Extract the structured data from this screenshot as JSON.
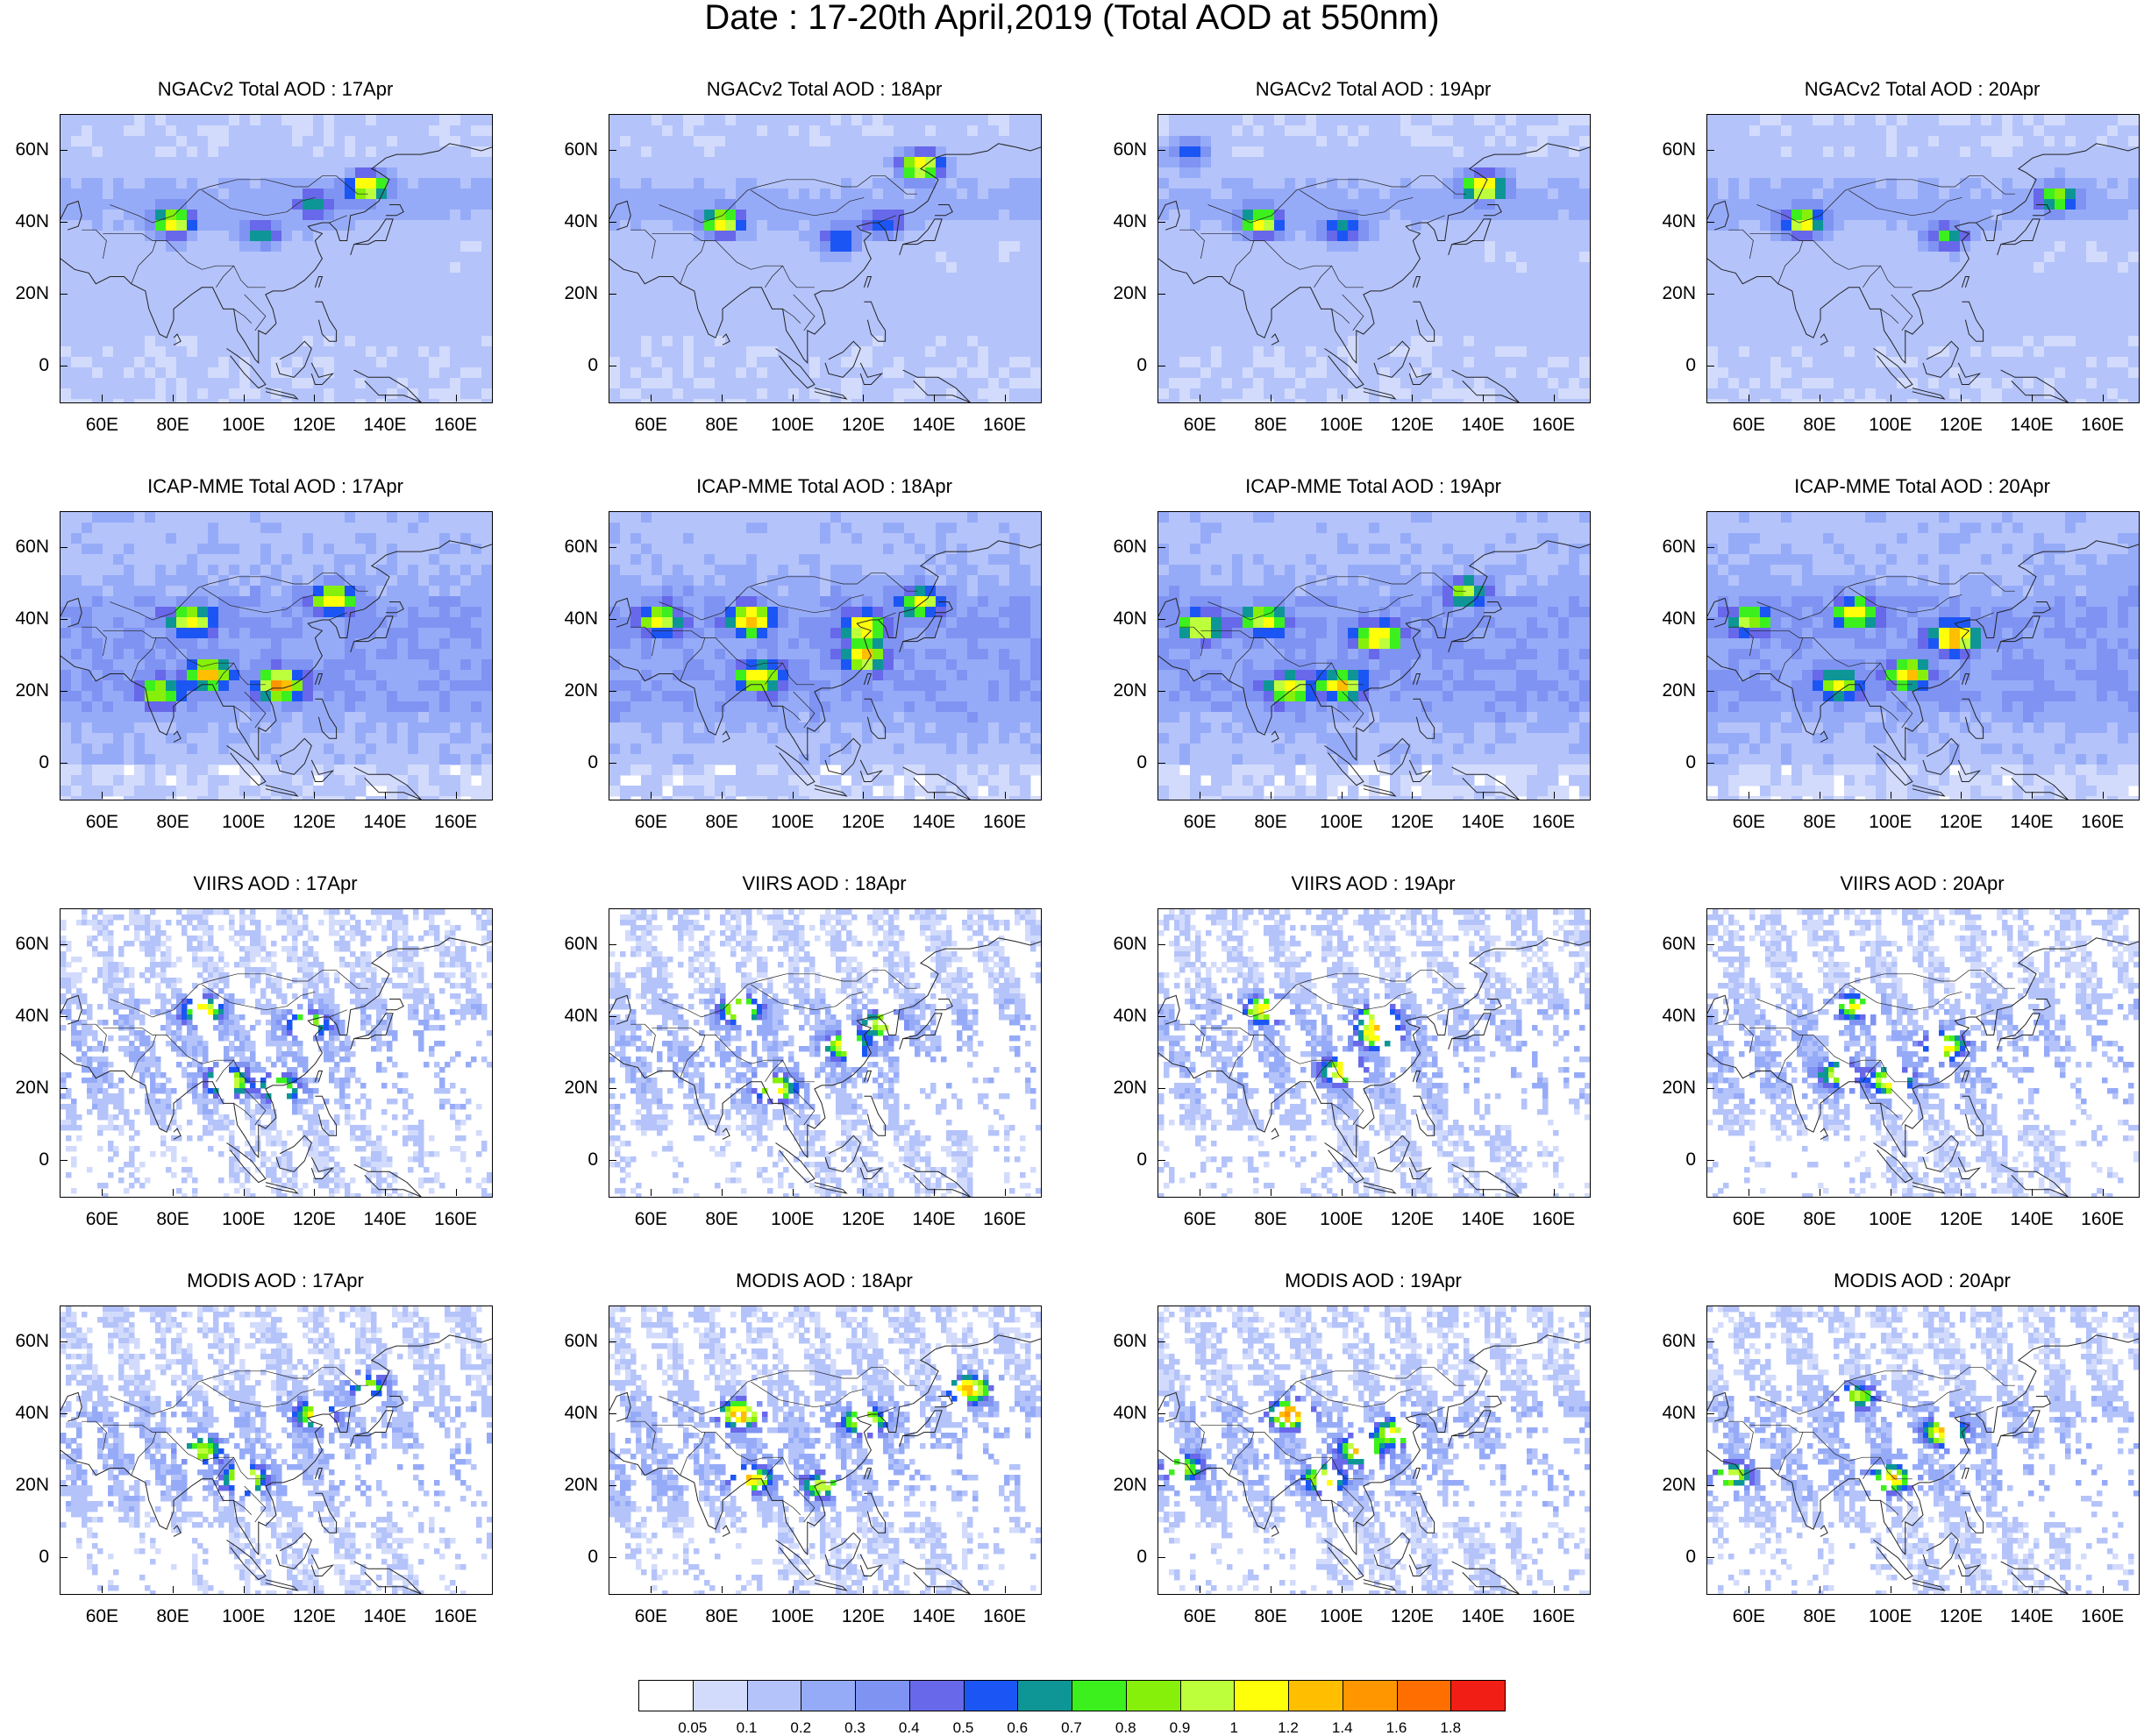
{
  "title": "Date : 17-20th April,2019 (Total AOD at 550nm)",
  "chart_data": {
    "type": "heatmap",
    "title": "Date : 17-20th April,2019 (Total AOD at 550nm)",
    "rows": [
      "NGACv2",
      "ICAP-MME",
      "VIIRS",
      "MODIS"
    ],
    "dates": [
      "17Apr",
      "18Apr",
      "19Apr",
      "20Apr"
    ],
    "x_ticks": [
      "60E",
      "80E",
      "100E",
      "120E",
      "140E",
      "160E"
    ],
    "x_tick_values": [
      60,
      80,
      100,
      120,
      140,
      160
    ],
    "y_ticks": [
      "60N",
      "40N",
      "20N",
      "0"
    ],
    "y_tick_values": [
      60,
      40,
      20,
      0
    ],
    "xlim": [
      48,
      170
    ],
    "ylim": [
      -10,
      70
    ],
    "colorbar": {
      "levels": [
        "0.05",
        "0.1",
        "0.2",
        "0.3",
        "0.4",
        "0.5",
        "0.6",
        "0.7",
        "0.8",
        "0.9",
        "1",
        "1.2",
        "1.4",
        "1.6",
        "1.8"
      ],
      "colors": [
        "#ffffff",
        "#d2dbfc",
        "#b4c3fa",
        "#96abf8",
        "#7f93f2",
        "#6868ea",
        "#1b56f5",
        "#0e9696",
        "#3cf01e",
        "#86f00a",
        "#beff3c",
        "#ffff0a",
        "#ffbe00",
        "#ff9600",
        "#ff6e00",
        "#f01e14"
      ],
      "position": "bottom"
    },
    "panels": [
      {
        "title": "NGACv2 Total AOD : 17Apr",
        "model": "NGACv2",
        "date": "17Apr",
        "seed": 11,
        "hotspots": [
          [
            80,
            40,
            0.9
          ],
          [
            135,
            50,
            1.0
          ],
          [
            105,
            37,
            0.5
          ],
          [
            120,
            45,
            0.45
          ]
        ]
      },
      {
        "title": "NGACv2 Total AOD : 18Apr",
        "model": "NGACv2",
        "date": "18Apr",
        "seed": 12,
        "hotspots": [
          [
            80,
            40,
            0.9
          ],
          [
            136,
            56,
            1.1
          ],
          [
            113,
            35,
            0.5
          ],
          [
            126,
            40,
            0.45
          ]
        ]
      },
      {
        "title": "NGACv2 Total AOD : 19Apr",
        "model": "NGACv2",
        "date": "19Apr",
        "seed": 13,
        "hotspots": [
          [
            77,
            40,
            0.9
          ],
          [
            140,
            50,
            1.1
          ],
          [
            100,
            38,
            0.5
          ],
          [
            57,
            60,
            0.5
          ]
        ]
      },
      {
        "title": "NGACv2 Total AOD : 20Apr",
        "model": "NGACv2",
        "date": "20Apr",
        "seed": 14,
        "hotspots": [
          [
            75,
            40,
            0.9
          ],
          [
            147,
            47,
            0.7
          ],
          [
            116,
            36,
            0.6
          ]
        ]
      },
      {
        "title": "ICAP-MME Total AOD : 17Apr",
        "model": "ICAP-MME",
        "date": "17Apr",
        "seed": 21,
        "hotspots": [
          [
            90,
            25,
            1.05
          ],
          [
            110,
            22,
            1.2
          ],
          [
            125,
            46,
            0.95
          ],
          [
            85,
            40,
            0.9
          ],
          [
            76,
            20,
            0.7
          ]
        ]
      },
      {
        "title": "ICAP-MME Total AOD : 18Apr",
        "model": "ICAP-MME",
        "date": "18Apr",
        "seed": 22,
        "hotspots": [
          [
            120,
            30,
            1.05
          ],
          [
            90,
            24,
            0.9
          ],
          [
            88,
            40,
            1.05
          ],
          [
            120,
            38,
            0.9
          ],
          [
            136,
            45,
            0.8
          ],
          [
            62,
            40,
            0.8
          ]
        ]
      },
      {
        "title": "ICAP-MME Total AOD : 19Apr",
        "model": "ICAP-MME",
        "date": "19Apr",
        "seed": 23,
        "hotspots": [
          [
            110,
            35,
            1.0
          ],
          [
            100,
            22,
            0.95
          ],
          [
            85,
            21,
            0.9
          ],
          [
            60,
            38,
            0.85
          ],
          [
            78,
            40,
            0.85
          ],
          [
            135,
            48,
            0.7
          ]
        ]
      },
      {
        "title": "ICAP-MME Total AOD : 20Apr",
        "model": "ICAP-MME",
        "date": "20Apr",
        "seed": 24,
        "hotspots": [
          [
            118,
            35,
            1.2
          ],
          [
            105,
            25,
            1.0
          ],
          [
            90,
            42,
            0.85
          ],
          [
            60,
            40,
            0.7
          ],
          [
            85,
            22,
            0.75
          ]
        ]
      },
      {
        "title": "VIIRS AOD : 17Apr",
        "model": "VIIRS",
        "date": "17Apr",
        "seed": 31,
        "hotspots": [
          [
            95,
            22,
            1.1
          ],
          [
            110,
            20,
            0.9
          ],
          [
            118,
            38,
            0.9
          ],
          [
            88,
            42,
            1.0
          ]
        ]
      },
      {
        "title": "VIIRS AOD : 18Apr",
        "model": "VIIRS",
        "date": "18Apr",
        "seed": 32,
        "hotspots": [
          [
            95,
            20,
            1.0
          ],
          [
            115,
            32,
            0.95
          ],
          [
            85,
            42,
            1.1
          ],
          [
            125,
            38,
            0.8
          ]
        ]
      },
      {
        "title": "VIIRS AOD : 19Apr",
        "model": "VIIRS",
        "date": "19Apr",
        "seed": 33,
        "hotspots": [
          [
            100,
            25,
            1.05
          ],
          [
            110,
            35,
            1.0
          ],
          [
            78,
            42,
            1.0
          ],
          [
            110,
            40,
            0.8
          ]
        ]
      },
      {
        "title": "VIIRS AOD : 20Apr",
        "model": "VIIRS",
        "date": "20Apr",
        "seed": 34,
        "hotspots": [
          [
            100,
            22,
            1.05
          ],
          [
            115,
            32,
            1.0
          ],
          [
            90,
            43,
            0.85
          ],
          [
            85,
            24,
            0.8
          ]
        ]
      },
      {
        "title": "MODIS AOD : 17Apr",
        "model": "MODIS",
        "date": "17Apr",
        "seed": 41,
        "hotspots": [
          [
            100,
            22,
            1.15
          ],
          [
            120,
            40,
            0.95
          ],
          [
            88,
            30,
            0.8
          ],
          [
            135,
            48,
            0.75
          ]
        ]
      },
      {
        "title": "MODIS AOD : 18Apr",
        "model": "MODIS",
        "date": "18Apr",
        "seed": 42,
        "hotspots": [
          [
            88,
            22,
            1.0
          ],
          [
            120,
            38,
            1.0
          ],
          [
            85,
            40,
            1.2
          ],
          [
            150,
            47,
            1.2
          ],
          [
            108,
            20,
            0.8
          ]
        ]
      },
      {
        "title": "MODIS AOD : 19Apr",
        "model": "MODIS",
        "date": "19Apr",
        "seed": 43,
        "hotspots": [
          [
            85,
            40,
            1.3
          ],
          [
            95,
            22,
            1.0
          ],
          [
            115,
            35,
            0.9
          ],
          [
            105,
            30,
            1.1
          ],
          [
            55,
            25,
            0.8
          ]
        ]
      },
      {
        "title": "MODIS AOD : 20Apr",
        "model": "MODIS",
        "date": "20Apr",
        "seed": 44,
        "hotspots": [
          [
            100,
            22,
            1.0
          ],
          [
            115,
            35,
            1.1
          ],
          [
            90,
            45,
            0.8
          ],
          [
            55,
            23,
            0.8
          ]
        ]
      }
    ]
  }
}
